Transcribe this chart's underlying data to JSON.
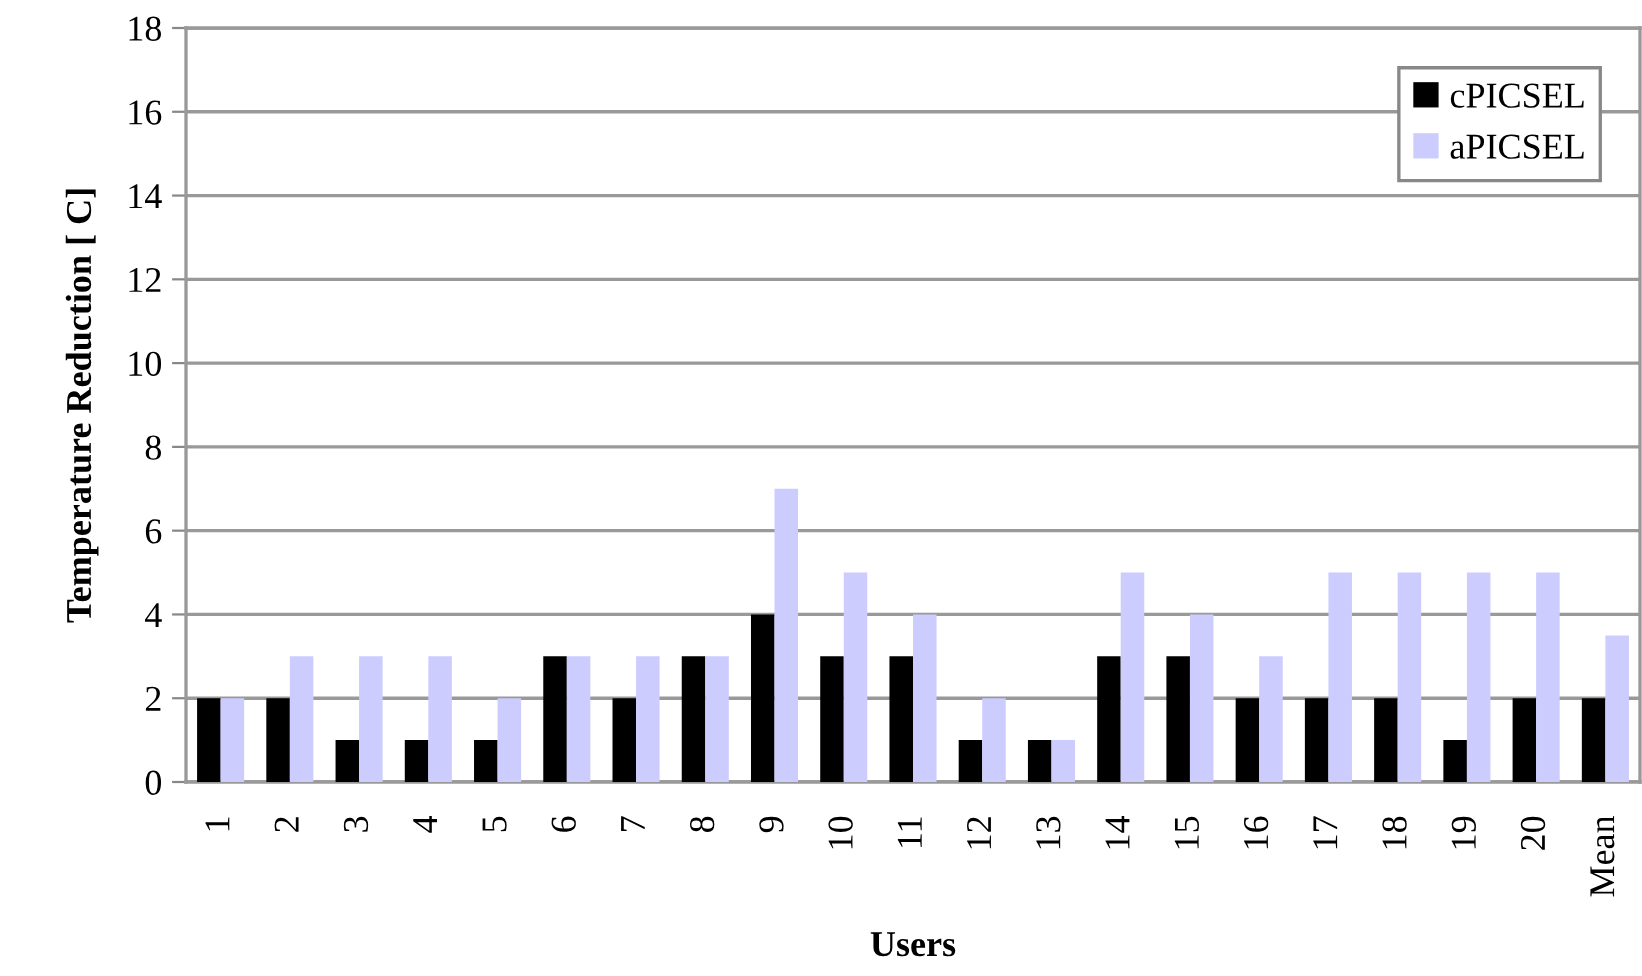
{
  "chart_data": {
    "type": "bar",
    "xlabel": "Users",
    "ylabel": "Temperature Reduction [ C]",
    "categories": [
      "1",
      "2",
      "3",
      "4",
      "5",
      "6",
      "7",
      "8",
      "9",
      "10",
      "11",
      "12",
      "13",
      "14",
      "15",
      "16",
      "17",
      "18",
      "19",
      "20",
      "Mean"
    ],
    "series": [
      {
        "name": "cPICSEL",
        "color": "#000000",
        "values": [
          2,
          2,
          1,
          1,
          1,
          3,
          2,
          3,
          4,
          3,
          3,
          1,
          1,
          3,
          3,
          2,
          2,
          2,
          1,
          2,
          2
        ]
      },
      {
        "name": "aPICSEL",
        "color": "#ccccff",
        "values": [
          2,
          3,
          3,
          3,
          2,
          3,
          3,
          3,
          7,
          5,
          4,
          2,
          1,
          5,
          4,
          3,
          5,
          5,
          5,
          5,
          3.5
        ]
      }
    ],
    "ylim": [
      0,
      18
    ],
    "yticks": [
      0,
      2,
      4,
      6,
      8,
      10,
      12,
      14,
      16,
      18
    ],
    "grid": "y",
    "legend": "top right"
  }
}
